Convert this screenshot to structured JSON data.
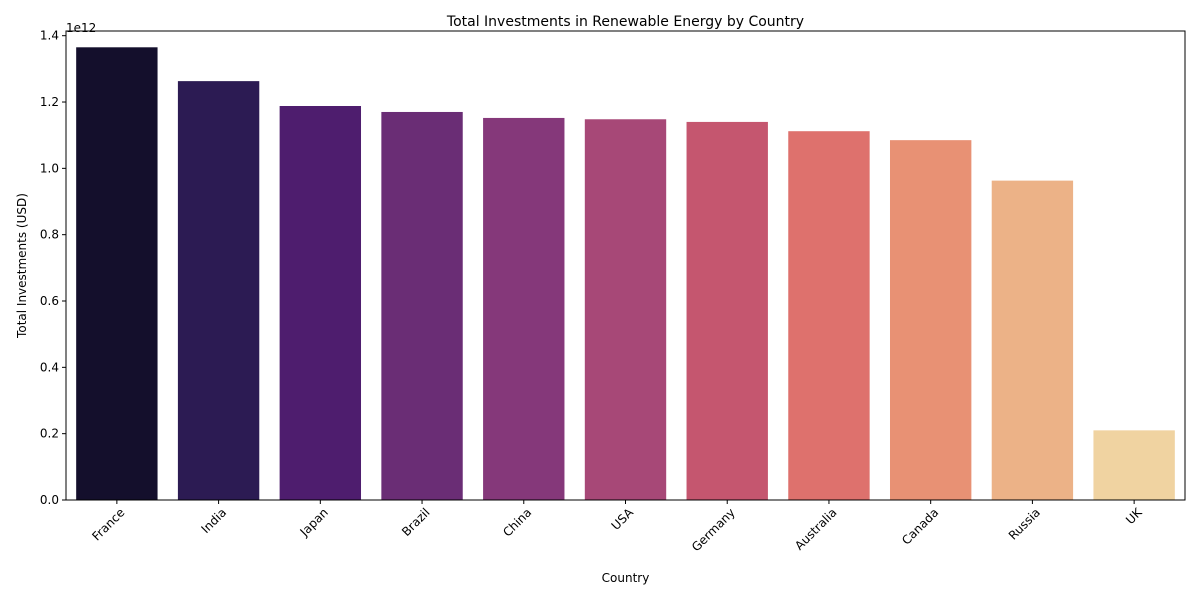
{
  "chart_data": {
    "type": "bar",
    "title": "Total Investments in Renewable Energy by Country",
    "xlabel": "Country",
    "ylabel": "Total Investments (USD)",
    "offset_label": "1e12",
    "categories": [
      "France",
      "India",
      "Japan",
      "Brazil",
      "China",
      "USA",
      "Germany",
      "Australia",
      "Canada",
      "Russia",
      "UK"
    ],
    "values": [
      1.365,
      1.263,
      1.188,
      1.17,
      1.152,
      1.148,
      1.14,
      1.112,
      1.085,
      0.963,
      0.21
    ],
    "value_unit_multiplier": "1e12",
    "ylim": [
      0,
      1.4
    ],
    "yticks": [
      0.0,
      0.2,
      0.4,
      0.6,
      0.8,
      1.0,
      1.2,
      1.4
    ],
    "ytick_labels": [
      "0.0",
      "0.2",
      "0.4",
      "0.6",
      "0.8",
      "1.0",
      "1.2",
      "1.4"
    ],
    "colors": [
      "#140f2c",
      "#2c1b53",
      "#4e1d6e",
      "#6a2d75",
      "#85387a",
      "#a74877",
      "#c5566f",
      "#de716d",
      "#e89174",
      "#ecb287",
      "#f0d3a1"
    ],
    "grid": false,
    "legend": "none"
  }
}
